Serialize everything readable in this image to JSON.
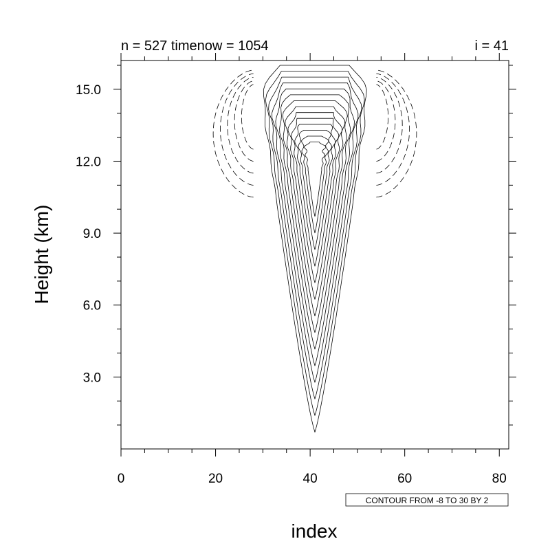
{
  "chart_data": {
    "type": "contour",
    "title_left": "n = 527 timenow = 1054",
    "title_right": "i = 41",
    "xlabel": "index",
    "ylabel": "Height (km)",
    "xlim": [
      0,
      82
    ],
    "ylim": [
      0,
      16.2
    ],
    "x_ticks": [
      0,
      20,
      40,
      60,
      80
    ],
    "x_tick_labels": [
      "0",
      "20",
      "40",
      "60",
      "80"
    ],
    "y_ticks": [
      3.0,
      6.0,
      9.0,
      12.0,
      15.0
    ],
    "y_tick_labels": [
      "3.0",
      "6.0",
      "9.0",
      "12.0",
      "15.0"
    ],
    "contour_info": "CONTOUR FROM -8 TO 30 BY 2",
    "contour_levels": {
      "min": -8,
      "max": 30,
      "step": 2
    },
    "negative_line_style": "dashed",
    "grid": false,
    "color": "#000000",
    "field": {
      "plume_center_index": 41,
      "plume_bottom_km": 0.7,
      "plume_top_km": 16.0,
      "plume_max_halfwidth_index": 12,
      "negative_lobes": [
        {
          "side": "left",
          "center_index": 24,
          "center_height_km": 13.3,
          "bottom_km": 10.5
        },
        {
          "side": "right",
          "center_index": 59,
          "center_height_km": 13.3,
          "bottom_km": 10.5
        }
      ]
    }
  }
}
